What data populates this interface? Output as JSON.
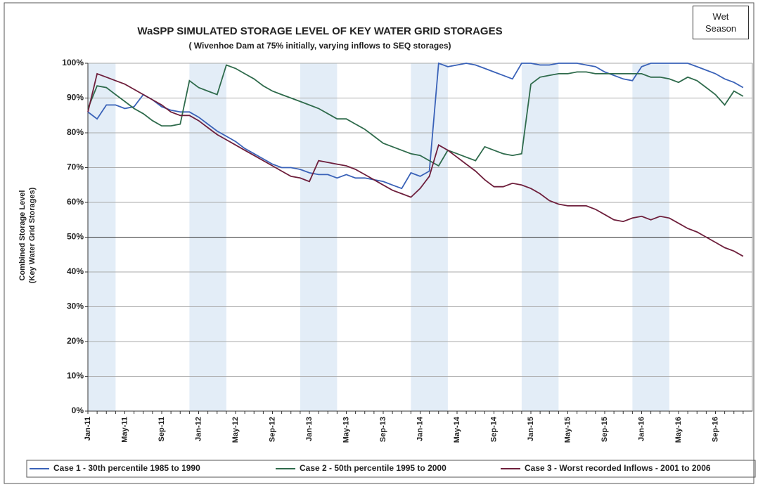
{
  "chart_data": {
    "type": "line",
    "title": "WaSPP SIMULATED STORAGE LEVEL OF KEY WATER GRID STORAGES",
    "subtitle": "( Wivenhoe Dam at 75% initially, varying inflows to SEQ storages)",
    "annotation": "Wet Season",
    "y_label": [
      "Combined Storage Level",
      "(Key Water Grid Storages)"
    ],
    "categories": [
      "Jan-11",
      null,
      null,
      null,
      "May-11",
      null,
      null,
      null,
      "Sep-11",
      null,
      null,
      null,
      "Jan-12",
      null,
      null,
      null,
      "May-12",
      null,
      null,
      null,
      "Sep-12",
      null,
      null,
      null,
      "Jan-13",
      null,
      null,
      null,
      "May-13",
      null,
      null,
      null,
      "Sep-13",
      null,
      null,
      null,
      "Jan-14",
      null,
      null,
      null,
      "May-14",
      null,
      null,
      null,
      "Sep-14",
      null,
      null,
      null,
      "Jan-15",
      null,
      null,
      null,
      "May-15",
      null,
      null,
      null,
      "Sep-15",
      null,
      null,
      null,
      "Jan-16",
      null,
      null,
      null,
      "May-16",
      null,
      null,
      null,
      "Sep-16",
      null,
      null,
      null
    ],
    "ylim": [
      0,
      100
    ],
    "yticks": [
      {
        "value": 0,
        "label": "0%"
      },
      {
        "value": 10,
        "label": "10%"
      },
      {
        "value": 20,
        "label": "20%"
      },
      {
        "value": 30,
        "label": "30%"
      },
      {
        "value": 40,
        "label": "40%"
      },
      {
        "value": 50,
        "label": "50%"
      },
      {
        "value": 60,
        "label": "60%"
      },
      {
        "value": 70,
        "label": "70%"
      },
      {
        "value": 80,
        "label": "80%"
      },
      {
        "value": 90,
        "label": "90%"
      },
      {
        "value": 100,
        "label": "100%"
      }
    ],
    "grid": true,
    "legend": "bottom",
    "series": [
      {
        "name": "Case 1 - 30th percentile 1985 to 1990",
        "color": "#3a62b8",
        "values": [
          86,
          84,
          88,
          88,
          87,
          87.5,
          91,
          89.5,
          87.5,
          86.5,
          86,
          86,
          84.5,
          82.5,
          80.5,
          79,
          77.5,
          75.5,
          74,
          72.5,
          71,
          70,
          70,
          69.5,
          68.5,
          68,
          68,
          67,
          68,
          67,
          67,
          66.5,
          66,
          65,
          64,
          68.5,
          67.5,
          69,
          100,
          99,
          99.5,
          100,
          99.5,
          98.5,
          97.5,
          96.5,
          95.5,
          100,
          100,
          99.5,
          99.5,
          100,
          100,
          100,
          99.5,
          99,
          97.5,
          96.5,
          95.5,
          95,
          99,
          100,
          100,
          100,
          100,
          100,
          99,
          98,
          97,
          95.5,
          94.5,
          93
        ]
      },
      {
        "name": "Case 2 - 50th percentile 1995 to 2000",
        "color": "#2f6b4c",
        "values": [
          87,
          93.5,
          93,
          91,
          89,
          87,
          85.5,
          83.5,
          82,
          82,
          82.5,
          95,
          93,
          92,
          91,
          99.5,
          98.5,
          97,
          95.5,
          93.5,
          92,
          91,
          90,
          89,
          88,
          87,
          85.5,
          84,
          84,
          82.5,
          81,
          79,
          77,
          76,
          75,
          74,
          73.5,
          72,
          70.5,
          75,
          74,
          73,
          72,
          76,
          75,
          74,
          73.5,
          74,
          94,
          96,
          96.5,
          97,
          97,
          97.5,
          97.5,
          97,
          97,
          97,
          97,
          97,
          97,
          96,
          96,
          95.5,
          94.5,
          96,
          95,
          93,
          91,
          88,
          92,
          90.5
        ]
      },
      {
        "name": "Case 3 - Worst recorded Inflows - 2001 to 2006",
        "color": "#6e1f3c",
        "values": [
          86,
          97,
          96,
          95,
          94,
          92.5,
          91,
          89.5,
          88,
          86,
          85,
          85,
          83.5,
          81.5,
          79.5,
          78,
          76.5,
          75,
          73.5,
          72,
          70.5,
          69,
          67.5,
          67,
          66,
          72,
          71.5,
          71,
          70.5,
          69.5,
          68,
          66.5,
          65,
          63.5,
          62.5,
          61.5,
          64,
          67.5,
          76.5,
          75,
          73,
          71,
          69,
          66.5,
          64.5,
          64.5,
          65.5,
          65,
          64,
          62.5,
          60.5,
          59.5,
          59,
          59,
          59,
          58,
          56.5,
          55,
          54.5,
          55.5,
          56,
          55,
          56,
          55.5,
          54,
          52.5,
          51.5,
          50,
          48.5,
          47,
          46,
          44.5
        ]
      }
    ]
  }
}
